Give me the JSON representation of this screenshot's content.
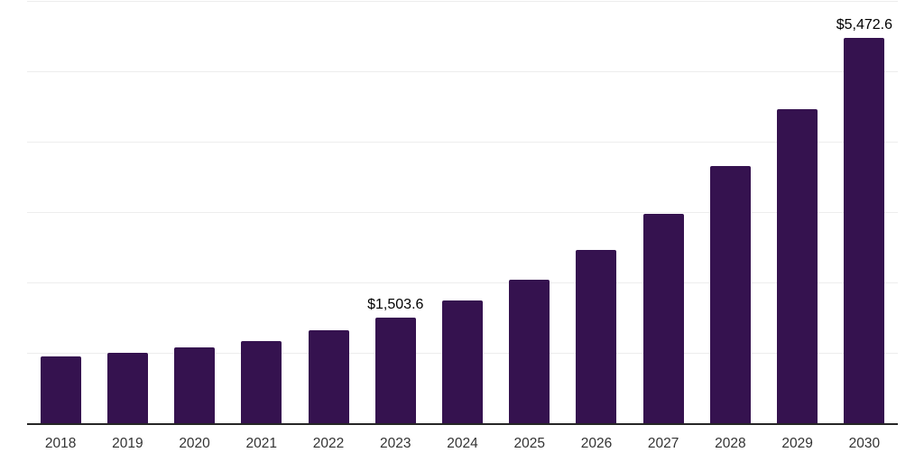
{
  "chart_data": {
    "type": "bar",
    "title": "",
    "xlabel": "",
    "ylabel": "",
    "categories": [
      "2018",
      "2019",
      "2020",
      "2021",
      "2022",
      "2023",
      "2024",
      "2025",
      "2026",
      "2027",
      "2028",
      "2029",
      "2030"
    ],
    "values": [
      950,
      1000,
      1080,
      1170,
      1320,
      1503.6,
      1740,
      2045,
      2465,
      2970,
      3650,
      4460,
      5472.6
    ],
    "value_labels": [
      "",
      "",
      "",
      "",
      "",
      "$1,503.6",
      "",
      "",
      "",
      "",
      "",
      "",
      "$5,472.6"
    ],
    "ylim": [
      0,
      6000
    ],
    "gridline_interval": 1000,
    "grid": "horizontal-only",
    "legend_position": "none",
    "colors": {
      "bar": "#35124F",
      "gridline": "#EDEDED",
      "axis_line": "#262626",
      "value_label_text": "#000000",
      "tick_label_text": "#333333",
      "background": "#FFFFFF"
    }
  }
}
